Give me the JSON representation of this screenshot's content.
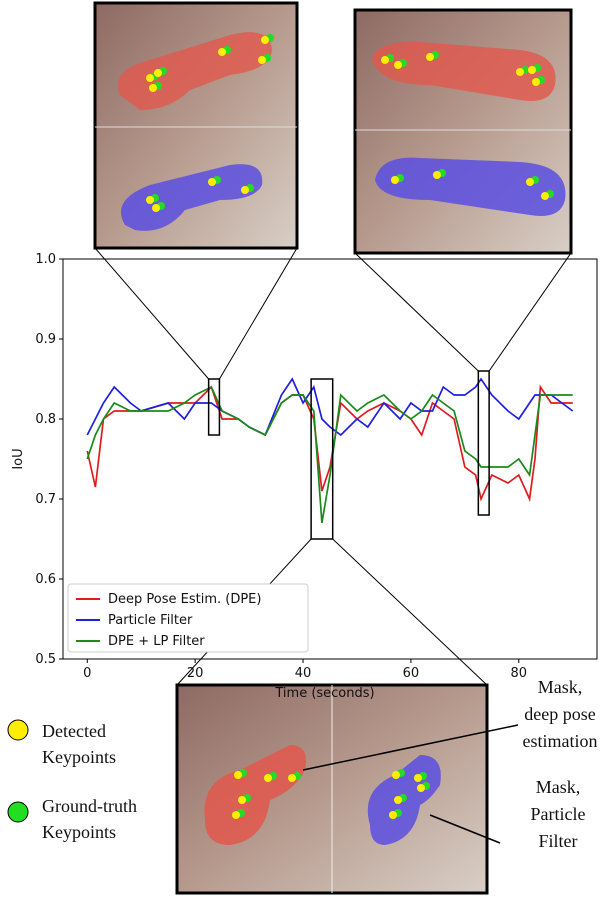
{
  "chart_data": {
    "type": "line",
    "x_label": "Time (seconds)",
    "y_label": "IoU",
    "xlim": [
      -4.5,
      94.5
    ],
    "ylim": [
      0.5,
      1.0
    ],
    "xticks": [
      0,
      20,
      40,
      60,
      80
    ],
    "yticks": [
      0.5,
      0.6,
      0.7,
      0.8,
      0.9,
      {
        "value": 1,
        "label": "1.0"
      }
    ],
    "x": [
      0,
      1.5,
      3,
      5,
      8,
      10,
      15,
      18,
      20,
      23,
      25,
      28,
      30,
      33,
      36,
      38,
      40,
      42,
      43.5,
      45,
      47,
      50,
      52,
      55,
      58,
      60,
      62,
      64,
      66,
      68,
      70,
      72,
      73,
      75,
      78,
      80,
      82,
      83,
      84,
      86,
      88,
      90
    ],
    "series": [
      {
        "name": "Deep Pose Estim. (DPE)",
        "color": "#e31a1c",
        "values": [
          0.76,
          0.715,
          0.8,
          0.81,
          0.81,
          0.81,
          0.82,
          0.82,
          0.82,
          0.84,
          0.8,
          0.8,
          0.79,
          0.78,
          0.82,
          0.83,
          0.83,
          0.8,
          0.71,
          0.74,
          0.82,
          0.8,
          0.81,
          0.82,
          0.81,
          0.8,
          0.78,
          0.82,
          0.81,
          0.8,
          0.74,
          0.73,
          0.7,
          0.73,
          0.72,
          0.73,
          0.7,
          0.75,
          0.84,
          0.82,
          0.82,
          0.82
        ]
      },
      {
        "name": "Particle Filter",
        "color": "#1f1fe0",
        "values": [
          0.78,
          0.8,
          0.82,
          0.84,
          0.82,
          0.81,
          0.82,
          0.8,
          0.82,
          0.82,
          0.81,
          0.8,
          0.79,
          0.78,
          0.83,
          0.85,
          0.82,
          0.84,
          0.8,
          0.79,
          0.78,
          0.8,
          0.79,
          0.82,
          0.8,
          0.82,
          0.81,
          0.81,
          0.84,
          0.83,
          0.83,
          0.84,
          0.85,
          0.83,
          0.81,
          0.8,
          0.82,
          0.83,
          0.83,
          0.83,
          0.82,
          0.81
        ]
      },
      {
        "name": "DPE + LP Filter",
        "color": "#1a8a1a",
        "values": [
          0.75,
          0.78,
          0.8,
          0.82,
          0.81,
          0.81,
          0.81,
          0.82,
          0.83,
          0.84,
          0.81,
          0.8,
          0.79,
          0.78,
          0.82,
          0.83,
          0.83,
          0.81,
          0.67,
          0.73,
          0.83,
          0.81,
          0.82,
          0.83,
          0.81,
          0.8,
          0.81,
          0.83,
          0.82,
          0.81,
          0.76,
          0.75,
          0.74,
          0.74,
          0.74,
          0.75,
          0.73,
          0.78,
          0.83,
          0.83,
          0.83,
          0.83
        ]
      }
    ],
    "legend": "lower left",
    "zoom_boxes": [
      {
        "xlim": [
          22.5,
          24.5
        ],
        "ylim": [
          0.78,
          0.85
        ]
      },
      {
        "xlim": [
          41.5,
          45.5
        ],
        "ylim": [
          0.65,
          0.85
        ]
      },
      {
        "xlim": [
          72.5,
          74.5
        ],
        "ylim": [
          0.68,
          0.86
        ]
      }
    ]
  },
  "annotations": {
    "detected": [
      "Detected",
      "Keypoints"
    ],
    "ground_truth": [
      "Ground-truth",
      "Keypoints"
    ],
    "mask_dpe": [
      "Mask,",
      "deep pose",
      "estimation"
    ],
    "mask_pf": [
      "Mask,",
      "Particle",
      "Filter"
    ]
  }
}
